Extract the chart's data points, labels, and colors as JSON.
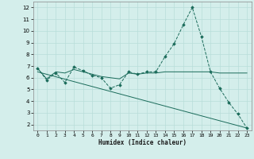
{
  "xlabel": "Humidex (Indice chaleur)",
  "x_ticks": [
    0,
    1,
    2,
    3,
    4,
    5,
    6,
    7,
    8,
    9,
    10,
    11,
    12,
    13,
    14,
    15,
    16,
    17,
    18,
    19,
    20,
    21,
    22,
    23
  ],
  "xlim": [
    -0.5,
    23.5
  ],
  "ylim": [
    1.5,
    12.5
  ],
  "y_ticks": [
    2,
    3,
    4,
    5,
    6,
    7,
    8,
    9,
    10,
    11,
    12
  ],
  "bg_color": "#d4eeeb",
  "grid_color": "#b8ddd9",
  "line_color": "#1a6b5a",
  "line1_x": [
    0,
    1,
    2,
    3,
    4,
    5,
    6,
    7,
    8,
    9,
    10,
    11,
    12,
    13,
    14,
    15,
    16,
    17,
    18,
    19,
    20,
    21,
    22,
    23
  ],
  "line1_y": [
    6.8,
    5.8,
    6.4,
    5.6,
    6.9,
    6.6,
    6.2,
    6.0,
    5.1,
    5.4,
    6.5,
    6.3,
    6.5,
    6.5,
    7.8,
    8.9,
    10.5,
    12.0,
    9.5,
    6.5,
    5.1,
    3.9,
    2.9,
    1.7
  ],
  "line2_x": [
    0,
    1,
    2,
    3,
    4,
    5,
    6,
    7,
    8,
    9,
    10,
    11,
    12,
    13,
    14,
    15,
    16,
    17,
    18,
    19,
    20,
    21,
    22,
    23
  ],
  "line2_y": [
    6.8,
    5.9,
    6.5,
    6.4,
    6.7,
    6.5,
    6.3,
    6.1,
    6.0,
    5.9,
    6.4,
    6.3,
    6.4,
    6.4,
    6.5,
    6.5,
    6.5,
    6.5,
    6.5,
    6.5,
    6.4,
    6.4,
    6.4,
    6.4
  ],
  "line3_x": [
    0,
    23
  ],
  "line3_y": [
    6.5,
    1.7
  ]
}
